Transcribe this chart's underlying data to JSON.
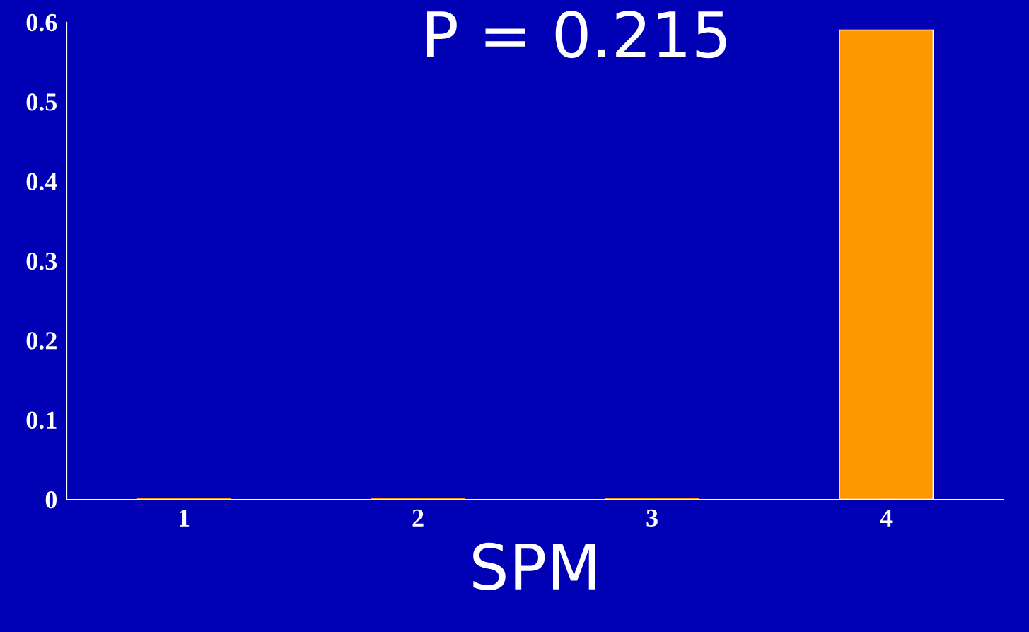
{
  "chart_data": {
    "type": "bar",
    "title": "P = 0.215",
    "xlabel": "SPM",
    "categories": [
      "1",
      "2",
      "3",
      "4"
    ],
    "values": [
      0,
      0,
      0,
      0.59
    ],
    "color": "#ff9900",
    "ylim": [
      0,
      0.6
    ],
    "yticks": [
      0,
      0.1,
      0.2,
      0.3,
      0.4,
      0.5,
      0.6
    ],
    "grid": false,
    "legend": false
  }
}
